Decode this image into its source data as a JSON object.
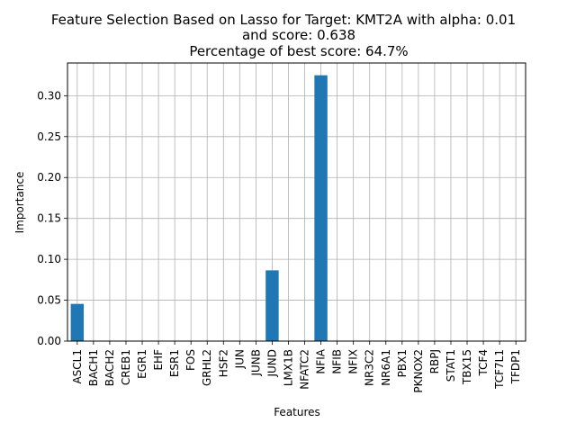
{
  "chart_data": {
    "type": "bar",
    "title_lines": [
      "Feature Selection Based on Lasso for Target: KMT2A with alpha: 0.01",
      "and score: 0.638",
      "Percentage of best score: 64.7%"
    ],
    "xlabel": "Features",
    "ylabel": "Importance",
    "categories": [
      "ASCL1",
      "BACH1",
      "BACH2",
      "CREB1",
      "EGR1",
      "EHF",
      "ESR1",
      "FOS",
      "GRHL2",
      "HSF2",
      "JUN",
      "JUNB",
      "JUND",
      "LMX1B",
      "NFATC2",
      "NFIA",
      "NFIB",
      "NFIX",
      "NR3C2",
      "NR6A1",
      "PBX1",
      "PKNOX2",
      "RBPJ",
      "STAT1",
      "TBX15",
      "TCF4",
      "TCF7L1",
      "TFDP1"
    ],
    "values": [
      0.0455,
      0,
      0,
      0,
      0,
      0,
      0,
      0,
      0,
      0,
      0,
      0,
      0.0865,
      0,
      0,
      0.325,
      0,
      0,
      0,
      0,
      0,
      0,
      0,
      0,
      0,
      0,
      0,
      0
    ],
    "ylim": [
      0,
      0.34
    ],
    "yticks": [
      "0.00",
      "0.05",
      "0.10",
      "0.15",
      "0.20",
      "0.25",
      "0.30"
    ],
    "ytick_values": [
      0,
      0.05,
      0.1,
      0.15,
      0.2,
      0.25,
      0.3
    ],
    "grid": true,
    "bar_color": "#1f77b4"
  }
}
